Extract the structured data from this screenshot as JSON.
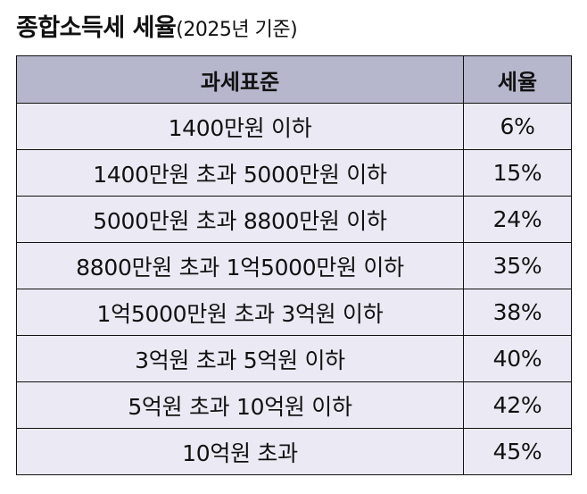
{
  "title": {
    "main": "종합소득세 세율",
    "sub": "(2025년 기준)"
  },
  "table": {
    "headers": [
      "과세표준",
      "세율"
    ],
    "rows": [
      {
        "bracket": "1400만원 이하",
        "rate": "6%"
      },
      {
        "bracket": "1400만원 초과 5000만원 이하",
        "rate": "15%"
      },
      {
        "bracket": "5000만원 초과 8800만원 이하",
        "rate": "24%"
      },
      {
        "bracket": "8800만원 초과 1억5000만원 이하",
        "rate": "35%"
      },
      {
        "bracket": "1억5000만원 초과 3억원 이하",
        "rate": "38%"
      },
      {
        "bracket": "3억원 초과 5억원 이하",
        "rate": "40%"
      },
      {
        "bracket": "5억원 초과 10억원 이하",
        "rate": "42%"
      },
      {
        "bracket": "10억원 초과",
        "rate": "45%"
      }
    ]
  },
  "colors": {
    "header_bg": "#b6b7cc",
    "cell_bg": "#ebeaf4",
    "border": "#111111"
  }
}
